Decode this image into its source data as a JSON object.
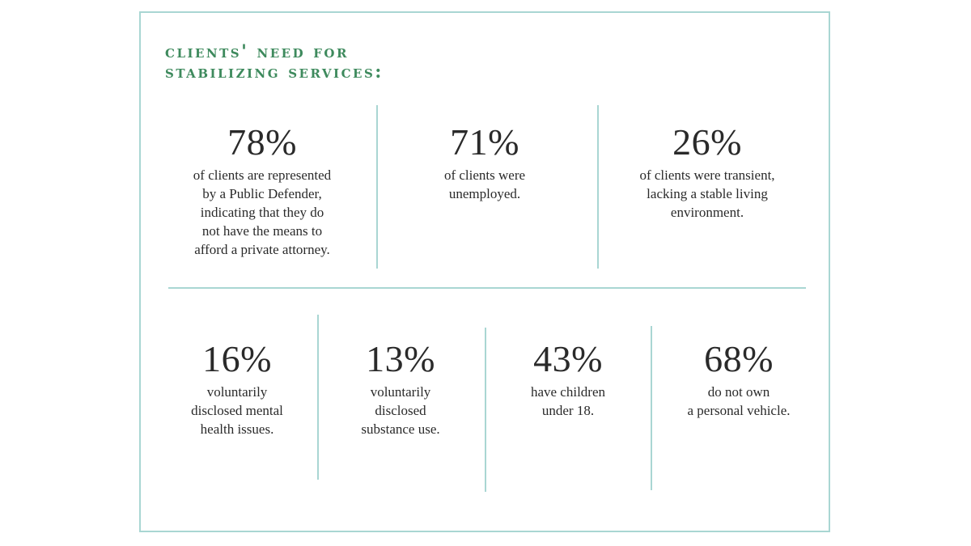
{
  "title": {
    "line1": "clients' need for",
    "line2": "stabilizing services:"
  },
  "top_row": [
    {
      "percent": "78%",
      "lines": [
        "of clients are represented",
        "by a Public Defender,",
        "indicating that they do",
        "not have the means to",
        "afford a private attorney."
      ]
    },
    {
      "percent": "71%",
      "lines": [
        "of clients were",
        "unemployed."
      ]
    },
    {
      "percent": "26%",
      "lines": [
        "of clients were transient,",
        "lacking a stable living",
        "environment."
      ]
    }
  ],
  "bottom_row": [
    {
      "percent": "16%",
      "lines": [
        "voluntarily",
        "disclosed mental",
        "health issues."
      ]
    },
    {
      "percent": "13%",
      "lines": [
        "voluntarily",
        "disclosed",
        "substance use."
      ]
    },
    {
      "percent": "43%",
      "lines": [
        "have children",
        "under 18."
      ]
    },
    {
      "percent": "68%",
      "lines": [
        "do not own",
        "a personal vehicle."
      ]
    }
  ],
  "colors": {
    "accent_green": "#3e8a5d",
    "divider_teal": "#a9d6d3",
    "text": "#2a2a2a"
  }
}
